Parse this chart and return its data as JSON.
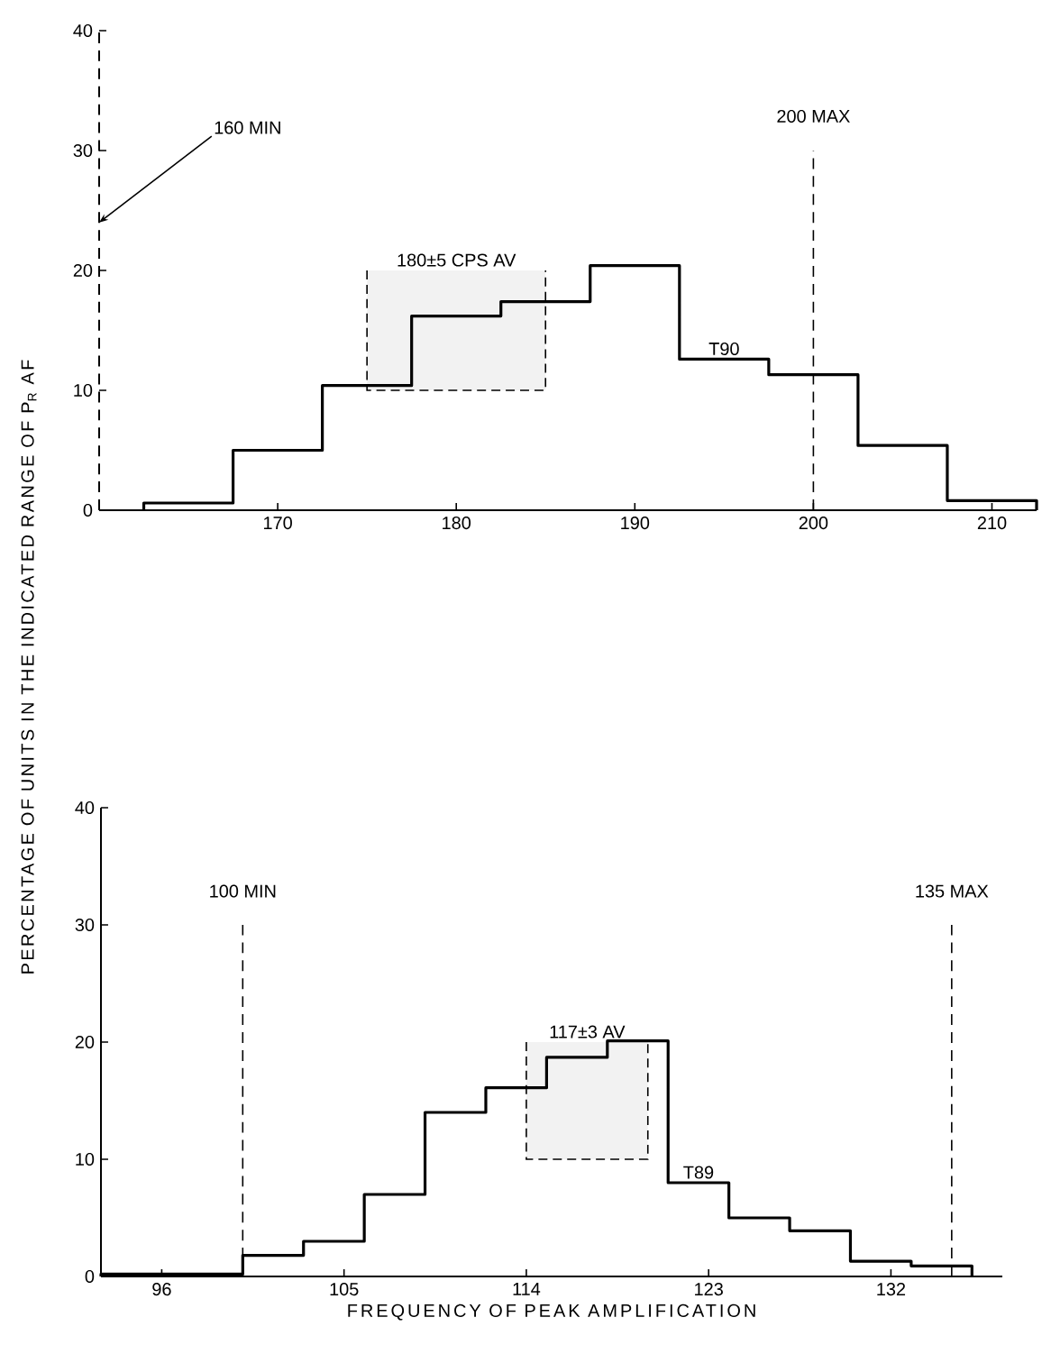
{
  "chart_data": [
    {
      "type": "histogram",
      "ylabel": "PERCENTAGE OF UNITS IN THE INDICATED RANGE OF P$_{R}$ AF",
      "bins": [
        162.5,
        167.5,
        172.5,
        177.5,
        182.5,
        187.5,
        192.5,
        197.5,
        202.5,
        207.5,
        212.5
      ],
      "series": [
        {
          "name": "T90",
          "color": "#000000",
          "values": [
            0.6,
            5,
            10.4,
            16.2,
            17.4,
            20.4,
            12.6,
            11.3,
            5.4,
            0.8
          ]
        }
      ],
      "xlim": [
        160,
        212.5
      ],
      "ylim": [
        0,
        40
      ],
      "xticks": [
        170,
        180,
        190,
        200,
        210
      ],
      "yticks": [
        0,
        10,
        20,
        30,
        40
      ],
      "ref_lines": [
        {
          "axis": "x",
          "value": 160,
          "label": "160 MIN",
          "line_style": "dashed"
        },
        {
          "axis": "x",
          "value": 200,
          "label": "200 MAX",
          "line_style": "dashed"
        }
      ],
      "bands": [
        {
          "axis": "x",
          "from": 175,
          "to": 185,
          "label": "180±5 CPS AV",
          "color": "#f2f2f2"
        }
      ]
    },
    {
      "type": "histogram",
      "xlabel": "FREQUENCY OF PEAK AMPLIFICATION",
      "bins": [
        93,
        100,
        103,
        106,
        109,
        112,
        115,
        118,
        121,
        124,
        127,
        130,
        133,
        136
      ],
      "series": [
        {
          "name": "T89",
          "color": "#000000",
          "values": [
            0.2,
            1.8,
            3.0,
            7.0,
            14.0,
            16.1,
            18.7,
            20.1,
            8.0,
            5.0,
            3.9,
            1.3,
            0.9
          ]
        }
      ],
      "xlim": [
        93,
        137.5
      ],
      "ylim": [
        0,
        40
      ],
      "xticks": [
        96,
        105,
        114,
        123,
        132
      ],
      "yticks": [
        0,
        10,
        20,
        30,
        40
      ],
      "ref_lines": [
        {
          "axis": "x",
          "value": 100,
          "label": "100 MIN",
          "line_style": "dashed"
        },
        {
          "axis": "x",
          "value": 135,
          "label": "135 MAX",
          "line_style": "dashed"
        }
      ],
      "bands": [
        {
          "axis": "x",
          "from": 114,
          "to": 120,
          "label": "117±3 AV",
          "color": "#f2f2f2"
        }
      ]
    }
  ]
}
